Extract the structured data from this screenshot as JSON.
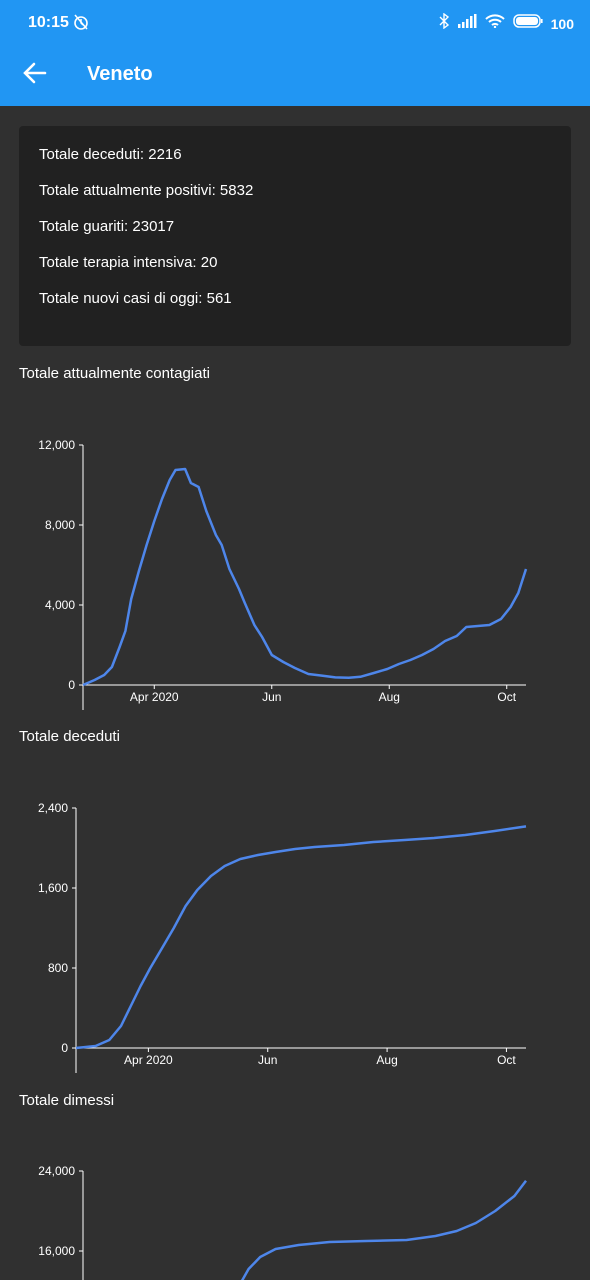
{
  "status_bar": {
    "time": "10:15",
    "battery": "100"
  },
  "toolbar": {
    "title": "Veneto"
  },
  "summary": {
    "items": [
      "Totale deceduti: 2216",
      "Totale attualmente positivi: 5832",
      "Totale guariti: 23017",
      "Totale terapia intensiva: 20",
      "Totale nuovi casi di oggi: 561"
    ]
  },
  "colors": {
    "accent": "#2196f3",
    "line": "#4e86ea",
    "background": "#303030",
    "card": "#212121"
  },
  "chart_data": [
    {
      "type": "line",
      "title": "Totale attualmente contagiati",
      "ylim": [
        0,
        12000
      ],
      "yticks": [
        "12,000",
        "8,000",
        "4,000",
        "0"
      ],
      "yticks_values": [
        12000,
        8000,
        4000,
        0
      ],
      "xticks": [
        "Apr 2020",
        "Jun",
        "Aug",
        "Oct"
      ],
      "xticks_dates": [
        "2020-04-01",
        "2020-06-01",
        "2020-08-01",
        "2020-10-01"
      ],
      "xlim": [
        "2020-02-24",
        "2020-10-11"
      ],
      "series": [
        {
          "points": [
            [
              "2020-02-24",
              0
            ],
            [
              "2020-03-01",
              250
            ],
            [
              "2020-03-06",
              500
            ],
            [
              "2020-03-10",
              900
            ],
            [
              "2020-03-14",
              1900
            ],
            [
              "2020-03-17",
              2700
            ],
            [
              "2020-03-20",
              4300
            ],
            [
              "2020-03-24",
              5700
            ],
            [
              "2020-03-28",
              7000
            ],
            [
              "2020-04-01",
              8200
            ],
            [
              "2020-04-05",
              9300
            ],
            [
              "2020-04-09",
              10250
            ],
            [
              "2020-04-12",
              10750
            ],
            [
              "2020-04-17",
              10800
            ],
            [
              "2020-04-20",
              10100
            ],
            [
              "2020-04-24",
              9900
            ],
            [
              "2020-04-28",
              8700
            ],
            [
              "2020-05-03",
              7500
            ],
            [
              "2020-05-06",
              7000
            ],
            [
              "2020-05-10",
              5800
            ],
            [
              "2020-05-15",
              4800
            ],
            [
              "2020-05-18",
              4100
            ],
            [
              "2020-05-23",
              3000
            ],
            [
              "2020-05-27",
              2400
            ],
            [
              "2020-06-01",
              1500
            ],
            [
              "2020-06-07",
              1150
            ],
            [
              "2020-06-13",
              850
            ],
            [
              "2020-06-20",
              550
            ],
            [
              "2020-06-27",
              470
            ],
            [
              "2020-07-04",
              380
            ],
            [
              "2020-07-11",
              360
            ],
            [
              "2020-07-17",
              410
            ],
            [
              "2020-07-24",
              600
            ],
            [
              "2020-07-31",
              800
            ],
            [
              "2020-08-06",
              1050
            ],
            [
              "2020-08-12",
              1250
            ],
            [
              "2020-08-18",
              1500
            ],
            [
              "2020-08-24",
              1800
            ],
            [
              "2020-08-30",
              2200
            ],
            [
              "2020-09-05",
              2450
            ],
            [
              "2020-09-10",
              2900
            ],
            [
              "2020-09-16",
              2950
            ],
            [
              "2020-09-22",
              3000
            ],
            [
              "2020-09-28",
              3300
            ],
            [
              "2020-10-03",
              3900
            ],
            [
              "2020-10-07",
              4600
            ],
            [
              "2020-10-11",
              5800
            ]
          ]
        }
      ]
    },
    {
      "type": "line",
      "title": "Totale deceduti",
      "ylim": [
        0,
        2400
      ],
      "yticks": [
        "2,400",
        "1,600",
        "800",
        "0"
      ],
      "yticks_values": [
        2400,
        1600,
        800,
        0
      ],
      "xticks": [
        "Apr 2020",
        "Jun",
        "Aug",
        "Oct"
      ],
      "xticks_dates": [
        "2020-04-01",
        "2020-06-01",
        "2020-08-01",
        "2020-10-01"
      ],
      "xlim": [
        "2020-02-24",
        "2020-10-11"
      ],
      "series": [
        {
          "points": [
            [
              "2020-02-24",
              0
            ],
            [
              "2020-03-05",
              20
            ],
            [
              "2020-03-12",
              80
            ],
            [
              "2020-03-18",
              220
            ],
            [
              "2020-03-23",
              420
            ],
            [
              "2020-03-28",
              620
            ],
            [
              "2020-04-02",
              800
            ],
            [
              "2020-04-08",
              1000
            ],
            [
              "2020-04-14",
              1200
            ],
            [
              "2020-04-20",
              1420
            ],
            [
              "2020-04-26",
              1580
            ],
            [
              "2020-05-03",
              1720
            ],
            [
              "2020-05-10",
              1820
            ],
            [
              "2020-05-18",
              1890
            ],
            [
              "2020-05-27",
              1930
            ],
            [
              "2020-06-05",
              1960
            ],
            [
              "2020-06-15",
              1990
            ],
            [
              "2020-06-25",
              2010
            ],
            [
              "2020-07-10",
              2030
            ],
            [
              "2020-07-25",
              2060
            ],
            [
              "2020-08-10",
              2080
            ],
            [
              "2020-08-25",
              2100
            ],
            [
              "2020-09-10",
              2130
            ],
            [
              "2020-09-25",
              2170
            ],
            [
              "2020-10-11",
              2216
            ]
          ]
        }
      ]
    },
    {
      "type": "line",
      "title": "Totale dimessi",
      "ylim": [
        0,
        24000
      ],
      "yticks": [
        "24,000",
        "16,000"
      ],
      "yticks_values": [
        24000,
        16000
      ],
      "xlim": [
        "2020-02-24",
        "2020-10-11"
      ],
      "series": [
        {
          "points": [
            [
              "2020-05-15",
              12500
            ],
            [
              "2020-05-20",
              14200
            ],
            [
              "2020-05-26",
              15400
            ],
            [
              "2020-06-03",
              16200
            ],
            [
              "2020-06-15",
              16600
            ],
            [
              "2020-07-01",
              16900
            ],
            [
              "2020-07-20",
              17000
            ],
            [
              "2020-08-10",
              17100
            ],
            [
              "2020-08-25",
              17500
            ],
            [
              "2020-09-05",
              18000
            ],
            [
              "2020-09-15",
              18800
            ],
            [
              "2020-09-25",
              20000
            ],
            [
              "2020-10-05",
              21500
            ],
            [
              "2020-10-11",
              23017
            ]
          ]
        }
      ]
    }
  ]
}
